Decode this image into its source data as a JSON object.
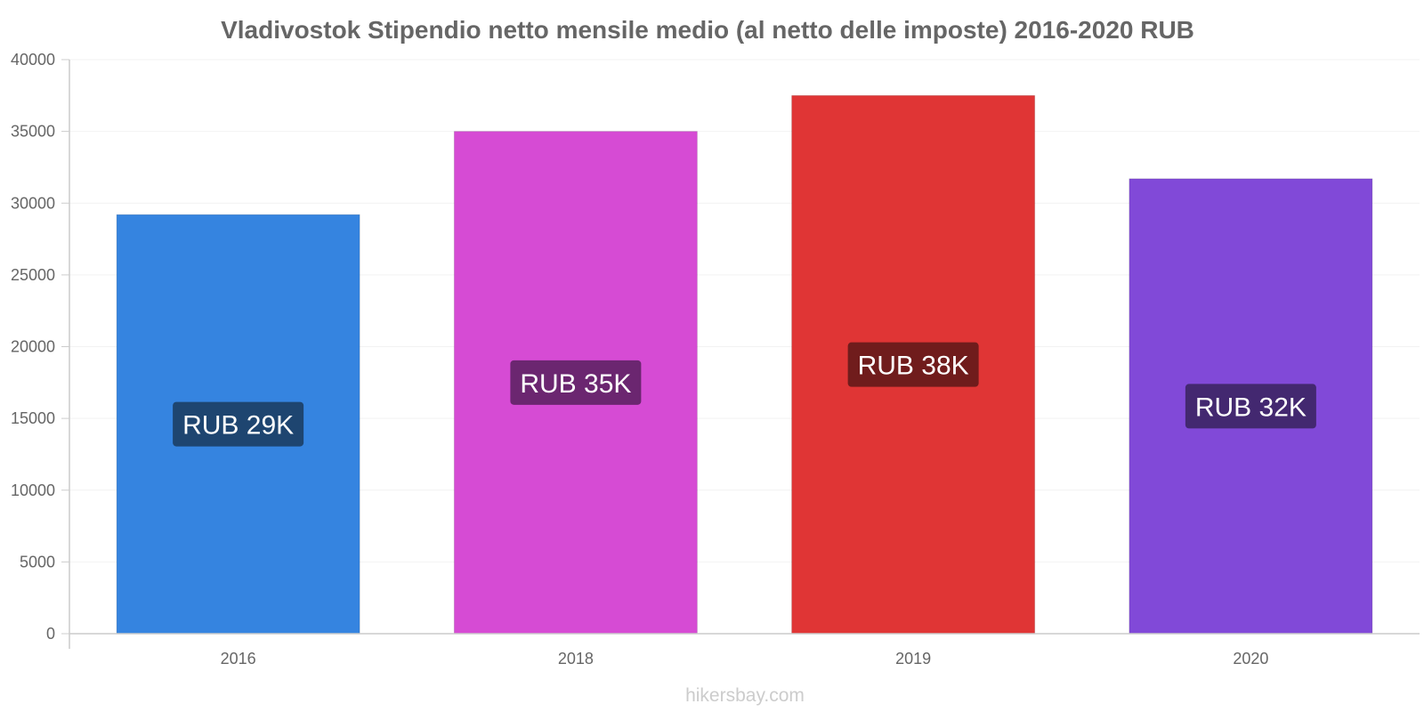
{
  "chart_data": {
    "type": "bar",
    "title": "Vladivostok Stipendio netto mensile medio (al netto delle imposte) 2016-2020 RUB",
    "categories": [
      "2016",
      "2018",
      "2019",
      "2020"
    ],
    "values": [
      29200,
      35000,
      37500,
      31700
    ],
    "data_labels": [
      "RUB 29K",
      "RUB 35K",
      "RUB 38K",
      "RUB 32K"
    ],
    "bar_colors": [
      "#3584e0",
      "#d64bd4",
      "#e03535",
      "#8149d8"
    ],
    "label_bg_colors": [
      "#1e4570",
      "#6b2670",
      "#701c1c",
      "#432870"
    ],
    "ylim": [
      0,
      40000
    ],
    "yticks": [
      "0",
      "5000",
      "10000",
      "15000",
      "20000",
      "25000",
      "30000",
      "35000",
      "40000"
    ],
    "grid": true
  },
  "watermark": "hikersbay.com"
}
